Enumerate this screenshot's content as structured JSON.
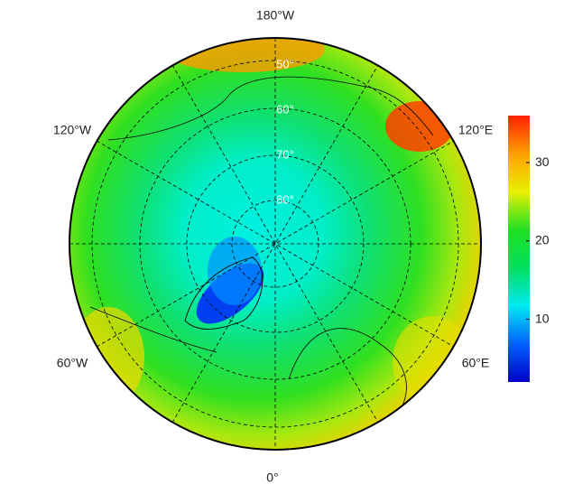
{
  "map": {
    "longitude_labels": {
      "top": "180°W",
      "upper_left": "120°W",
      "upper_right": "120°E",
      "lower_left": "60°W",
      "lower_right": "60°E",
      "bottom": "0°"
    },
    "latitude_labels": [
      "50°",
      "60°",
      "70°",
      "80°"
    ]
  },
  "colorbar": {
    "lim": [
      2,
      36
    ],
    "ticks": [
      10,
      20,
      30
    ],
    "colors": [
      "#0000c8",
      "#0060ff",
      "#00e8f0",
      "#00e060",
      "#20e020",
      "#e8f000",
      "#ffa000",
      "#ff2000"
    ]
  }
}
